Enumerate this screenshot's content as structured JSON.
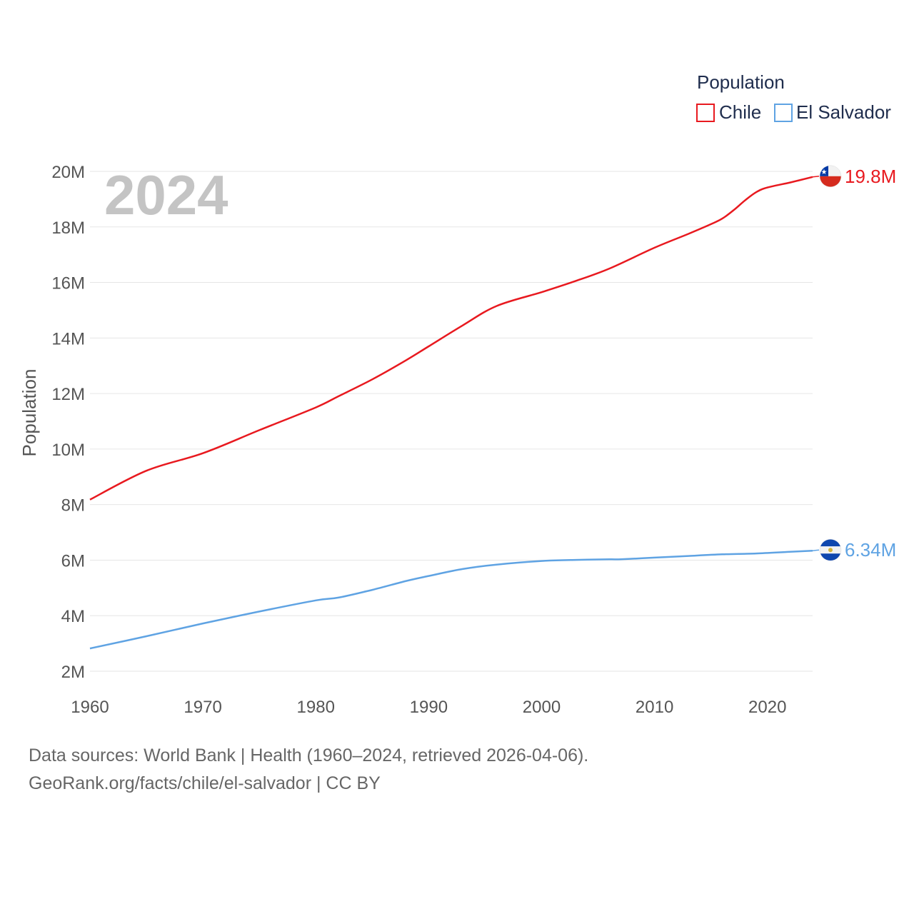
{
  "chart_data": {
    "type": "line",
    "ylabel": "Population",
    "current_year": "2024",
    "legend_title": "Population",
    "xlim": [
      1960,
      2024
    ],
    "ylim": [
      2000000,
      20000000
    ],
    "x_ticks": [
      1960,
      1970,
      1980,
      1990,
      2000,
      2010,
      2020
    ],
    "x_tick_labels": [
      "1960",
      "1970",
      "1980",
      "1990",
      "2000",
      "2010",
      "2020"
    ],
    "y_ticks": [
      2000000,
      4000000,
      6000000,
      8000000,
      10000000,
      12000000,
      14000000,
      16000000,
      18000000,
      20000000
    ],
    "y_tick_labels": [
      "2M",
      "4M",
      "6M",
      "8M",
      "10M",
      "12M",
      "14M",
      "16M",
      "18M",
      "20M"
    ],
    "series": [
      {
        "name": "Chile",
        "color": "#e8191f",
        "end_label": "19.8M",
        "flag_icon": "chile-flag-icon",
        "x": [
          1960,
          1965,
          1970,
          1975,
          1980,
          1982,
          1985,
          1988,
          1990,
          1993,
          1996,
          2000,
          2003,
          2006,
          2010,
          2013,
          2015,
          2016,
          2017,
          2018,
          2019,
          2020,
          2022,
          2024
        ],
        "values": [
          8180000,
          9220000,
          9850000,
          10680000,
          11500000,
          11900000,
          12510000,
          13200000,
          13700000,
          14450000,
          15150000,
          15650000,
          16050000,
          16500000,
          17250000,
          17750000,
          18100000,
          18300000,
          18600000,
          18950000,
          19250000,
          19420000,
          19600000,
          19800000
        ]
      },
      {
        "name": "El Salvador",
        "color": "#5fa3e3",
        "end_label": "6.34M",
        "flag_icon": "el-salvador-flag-icon",
        "x": [
          1960,
          1965,
          1970,
          1975,
          1980,
          1982,
          1985,
          1988,
          1990,
          1993,
          1996,
          2000,
          2003,
          2006,
          2007,
          2010,
          2013,
          2016,
          2019,
          2022,
          2024
        ],
        "values": [
          2820000,
          3260000,
          3720000,
          4150000,
          4550000,
          4650000,
          4930000,
          5250000,
          5430000,
          5680000,
          5840000,
          5970000,
          6010000,
          6030000,
          6030000,
          6090000,
          6150000,
          6210000,
          6240000,
          6300000,
          6340000
        ]
      }
    ]
  },
  "footer": {
    "sources": "Data sources: World Bank | Health (1960–2024, retrieved 2026-04-06).",
    "credit": "GeoRank.org/facts/chile/el-salvador | CC BY"
  }
}
